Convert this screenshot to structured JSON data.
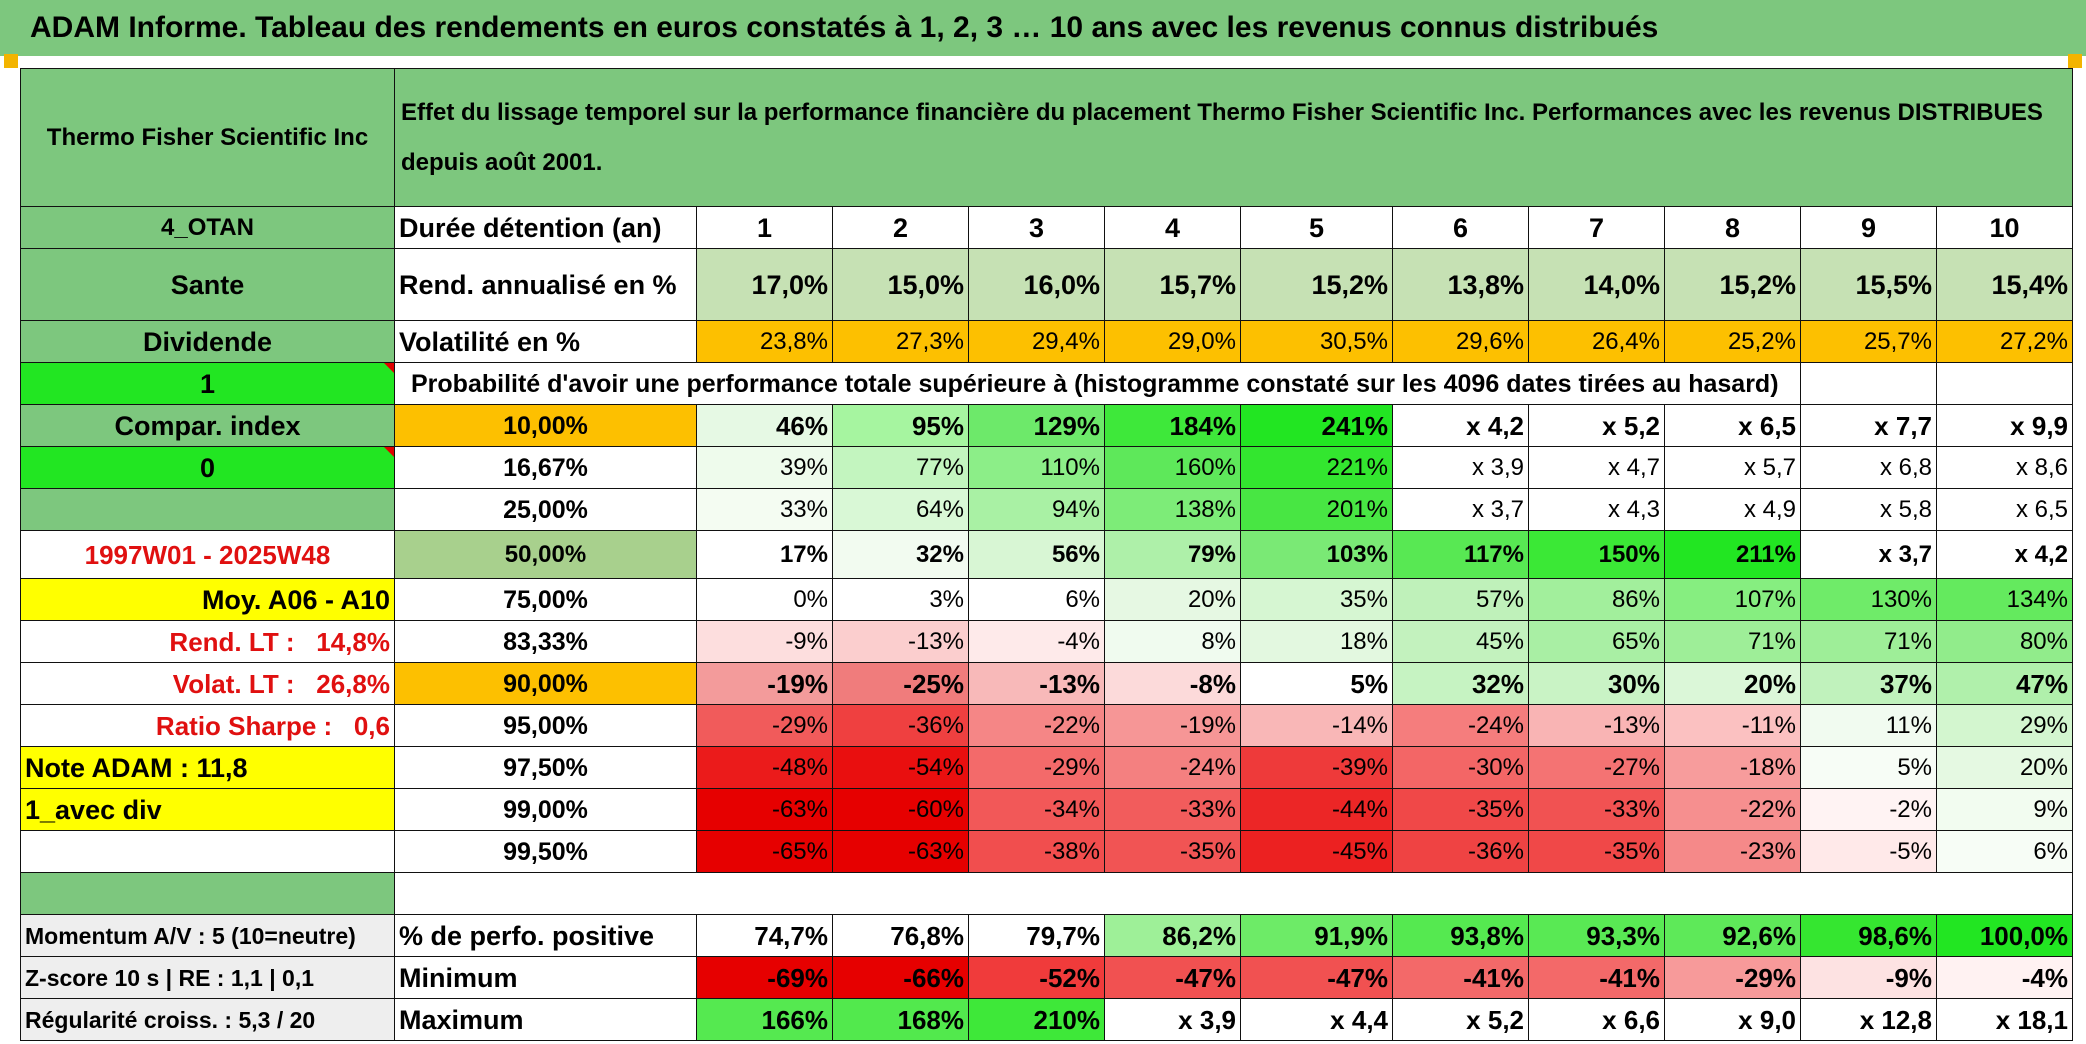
{
  "header": {
    "title": "ADAM Informe. Tableau des rendements en euros constatés à 1, 2, 3 … 10 ans avec les revenus connus distribués"
  },
  "company": "Thermo Fisher Scientific Inc",
  "description": "Effet du lissage temporel sur la performance financière du placement Thermo Fisher Scientific Inc. Performances avec les revenus DISTRIBUES depuis août 2001.",
  "left": {
    "code": "4_OTAN",
    "sector": "Sante",
    "dividend": "Dividende",
    "flag1": "1",
    "compar": "Compar. index",
    "flag0": "0",
    "period": "1997W01 - 2025W48",
    "avg": "Moy. A06 - A10",
    "rend_label": "Rend. LT :",
    "rend_value": "14,8%",
    "volat_label": "Volat. LT :",
    "volat_value": "26,8%",
    "sharpe_label": "Ratio Sharpe :",
    "sharpe_value": "0,6",
    "note": "Note ADAM : 11,8",
    "variant": "1_avec div"
  },
  "duration": {
    "label": "Durée détention (an)",
    "years": [
      "1",
      "2",
      "3",
      "4",
      "5",
      "6",
      "7",
      "8",
      "9",
      "10"
    ]
  },
  "rend": {
    "label": "Rend. annualisé en %",
    "values": [
      "17,0%",
      "15,0%",
      "16,0%",
      "15,7%",
      "15,2%",
      "13,8%",
      "14,0%",
      "15,2%",
      "15,5%",
      "15,4%"
    ]
  },
  "volat": {
    "label": "Volatilité en %",
    "values": [
      "23,8%",
      "27,3%",
      "29,4%",
      "29,0%",
      "30,5%",
      "29,6%",
      "26,4%",
      "25,2%",
      "25,7%",
      "27,2%"
    ]
  },
  "prob_title": "Probabilité d'avoir une performance totale supérieure à (histogramme constaté sur les 4096 dates tirées au hasard)",
  "prob_rows": [
    {
      "label": "10,00%",
      "values": [
        "46%",
        "95%",
        "129%",
        "184%",
        "241%",
        "x 4,2",
        "x 5,2",
        "x 6,5",
        "x 7,7",
        "x 9,9"
      ]
    },
    {
      "label": "16,67%",
      "values": [
        "39%",
        "77%",
        "110%",
        "160%",
        "221%",
        "x 3,9",
        "x 4,7",
        "x 5,7",
        "x 6,8",
        "x 8,6"
      ]
    },
    {
      "label": "25,00%",
      "values": [
        "33%",
        "64%",
        "94%",
        "138%",
        "201%",
        "x 3,7",
        "x 4,3",
        "x 4,9",
        "x 5,8",
        "x 6,5"
      ]
    },
    {
      "label": "50,00%",
      "values": [
        "17%",
        "32%",
        "56%",
        "79%",
        "103%",
        "117%",
        "150%",
        "211%",
        "x 3,7",
        "x 4,2"
      ]
    },
    {
      "label": "75,00%",
      "values": [
        "0%",
        "3%",
        "6%",
        "20%",
        "35%",
        "57%",
        "86%",
        "107%",
        "130%",
        "134%"
      ]
    },
    {
      "label": "83,33%",
      "values": [
        "-9%",
        "-13%",
        "-4%",
        "8%",
        "18%",
        "45%",
        "65%",
        "71%",
        "71%",
        "80%"
      ]
    },
    {
      "label": "90,00%",
      "values": [
        "-19%",
        "-25%",
        "-13%",
        "-8%",
        "5%",
        "32%",
        "30%",
        "20%",
        "37%",
        "47%"
      ]
    },
    {
      "label": "95,00%",
      "values": [
        "-29%",
        "-36%",
        "-22%",
        "-19%",
        "-14%",
        "-24%",
        "-13%",
        "-11%",
        "11%",
        "29%"
      ]
    },
    {
      "label": "97,50%",
      "values": [
        "-48%",
        "-54%",
        "-29%",
        "-24%",
        "-39%",
        "-30%",
        "-27%",
        "-18%",
        "5%",
        "20%"
      ]
    },
    {
      "label": "99,00%",
      "values": [
        "-63%",
        "-60%",
        "-34%",
        "-33%",
        "-44%",
        "-35%",
        "-33%",
        "-22%",
        "-2%",
        "9%"
      ]
    },
    {
      "label": "99,50%",
      "values": [
        "-65%",
        "-63%",
        "-38%",
        "-35%",
        "-45%",
        "-36%",
        "-35%",
        "-23%",
        "-5%",
        "6%"
      ]
    }
  ],
  "bottom": {
    "momentum": "Momentum A/V : 5 (10=neutre)",
    "zscore": "Z-score 10 s | RE : 1,1 | 0,1",
    "regularite": "Régularité croiss. : 5,3 / 20",
    "pos": {
      "label": "% de perfo. positive",
      "values": [
        "74,7%",
        "76,8%",
        "79,7%",
        "86,2%",
        "91,9%",
        "93,8%",
        "93,3%",
        "92,6%",
        "98,6%",
        "100,0%"
      ]
    },
    "min": {
      "label": "Minimum",
      "values": [
        "-69%",
        "-66%",
        "-52%",
        "-47%",
        "-47%",
        "-41%",
        "-41%",
        "-29%",
        "-9%",
        "-4%"
      ]
    },
    "max": {
      "label": "Maximum",
      "values": [
        "166%",
        "168%",
        "210%",
        "x 3,9",
        "x 4,4",
        "x 5,2",
        "x 6,6",
        "x 9,0",
        "x 12,8",
        "x 18,1"
      ]
    }
  },
  "colors": {
    "header_green": "#7dc77e",
    "bright_green": "#22e622",
    "orange": "#fdc000",
    "light_green": "#c6e1b4",
    "yellow": "#ffff00"
  }
}
